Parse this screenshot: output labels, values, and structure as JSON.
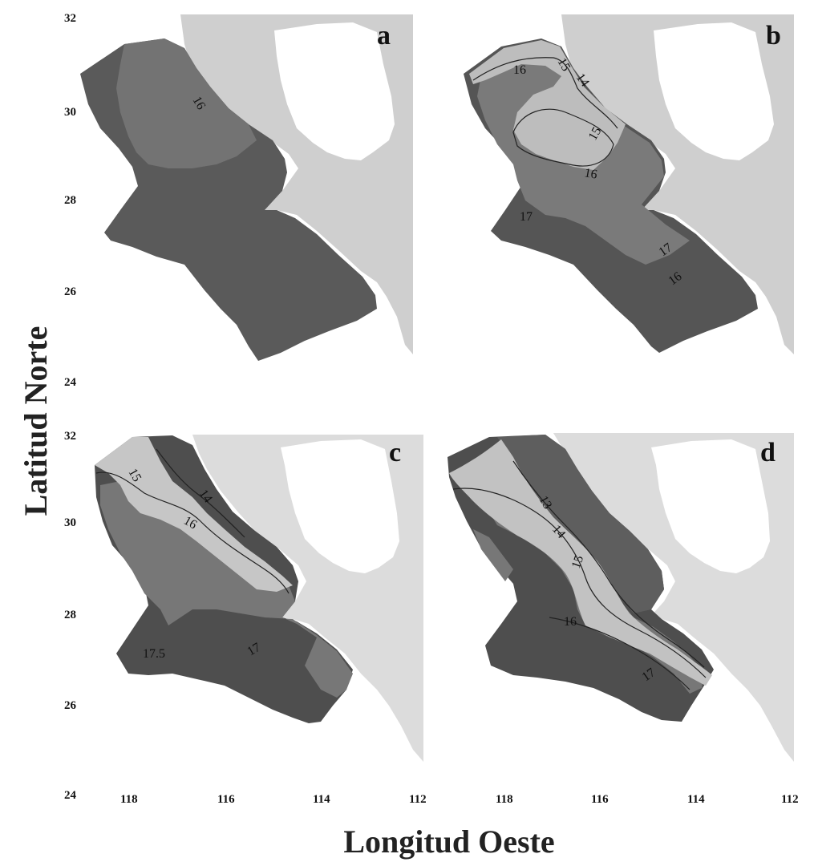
{
  "figure": {
    "y_axis_title": "Latitud Norte",
    "x_axis_title": "Longitud Oeste",
    "y_ticks_top": [
      "32",
      "30",
      "28",
      "26",
      "24"
    ],
    "y_ticks_bottom": [
      "32",
      "30",
      "28",
      "26",
      "24"
    ],
    "x_ticks_left": [
      "118",
      "116",
      "114",
      "112"
    ],
    "x_ticks_right": [
      "118",
      "116",
      "114",
      "112"
    ]
  },
  "panels": [
    {
      "letter": "a",
      "contour_labels": [
        "16"
      ]
    },
    {
      "letter": "b",
      "contour_labels": [
        "16",
        "15",
        "14",
        "15",
        "16",
        "17",
        "17",
        "16"
      ]
    },
    {
      "letter": "c",
      "contour_labels": [
        "15",
        "14",
        "16",
        "17.5",
        "17"
      ]
    },
    {
      "letter": "d",
      "contour_labels": [
        "13",
        "14",
        "15",
        "16",
        "17"
      ]
    }
  ],
  "colors": {
    "land": "#cfcfcf",
    "land_light": "#dcdcdc",
    "gulf": "#ffffff",
    "zone_12_13": "#c2c2c2",
    "zone_14_15": "#bdbdbd",
    "zone_16": "#7a7a7a",
    "zone_17": "#4e4e4e",
    "contour": "#222222"
  }
}
